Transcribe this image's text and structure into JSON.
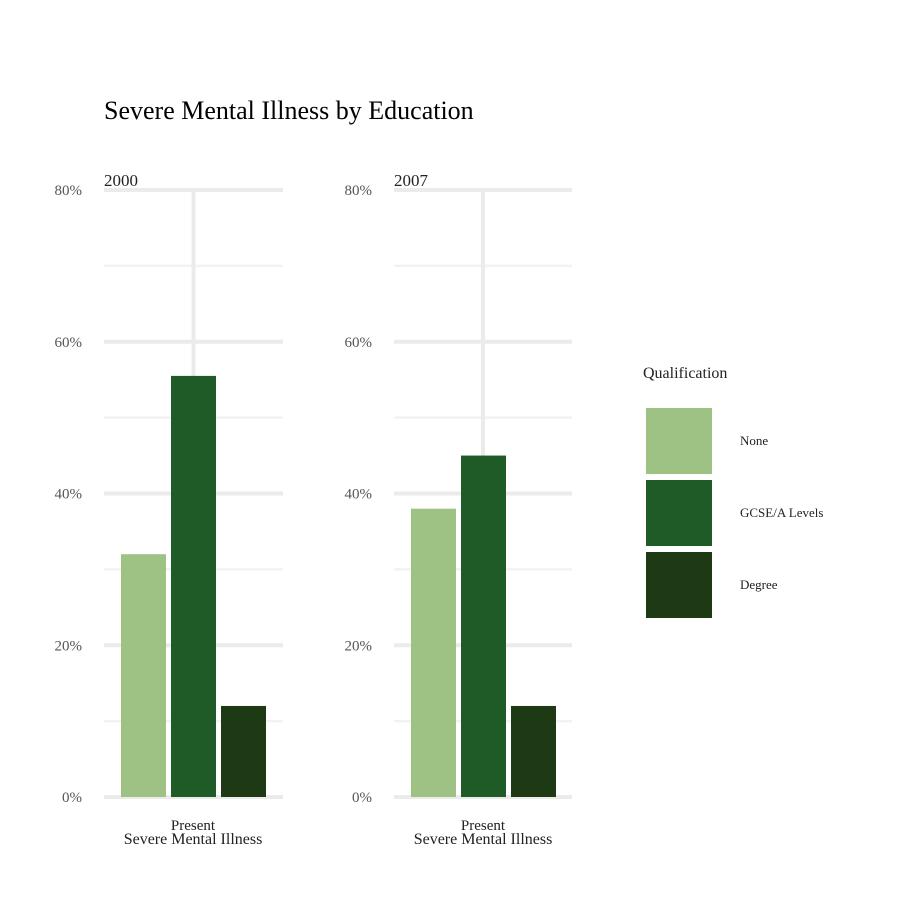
{
  "chart_data": {
    "type": "bar",
    "title": "Severe Mental Illness by Education",
    "xlabel": "Severe Mental Illness",
    "ylabel": "",
    "ylim": [
      0,
      0.8
    ],
    "yticks": [
      "0%",
      "20%",
      "40%",
      "60%",
      "80%"
    ],
    "ytick_values": [
      0,
      0.2,
      0.4,
      0.6,
      0.8
    ],
    "categories": [
      "Present"
    ],
    "legend": {
      "title": "Qualification",
      "placement": "right",
      "entries": [
        "None",
        "GCSE/A Levels",
        "Degree"
      ]
    },
    "colors": {
      "None": "#9ec283",
      "GCSE/A Levels": "#1f5b26",
      "Degree": "#1e3a14"
    },
    "grid": true,
    "panels": [
      {
        "name": "2000",
        "series": [
          {
            "name": "None",
            "values": [
              0.32
            ]
          },
          {
            "name": "GCSE/A Levels",
            "values": [
              0.555
            ]
          },
          {
            "name": "Degree",
            "values": [
              0.12
            ]
          }
        ]
      },
      {
        "name": "2007",
        "series": [
          {
            "name": "None",
            "values": [
              0.38
            ]
          },
          {
            "name": "GCSE/A Levels",
            "values": [
              0.45
            ]
          },
          {
            "name": "Degree",
            "values": [
              0.12
            ]
          }
        ]
      }
    ]
  }
}
